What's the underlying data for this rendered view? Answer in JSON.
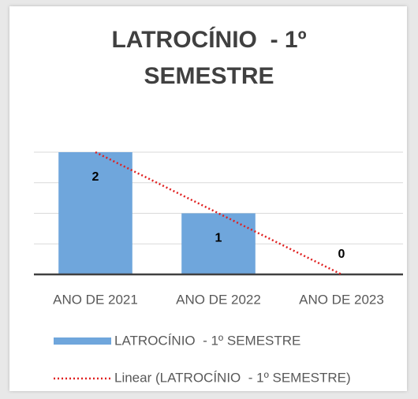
{
  "chart_data": {
    "type": "bar",
    "title": "LATROCÍNIO  - 1º SEMESTRE",
    "categories": [
      "ANO DE 2021",
      "ANO DE 2022",
      "ANO DE 2023"
    ],
    "series": [
      {
        "name": "LATROCÍNIO  - 1º SEMESTRE",
        "color": "#6fa6dc",
        "values": [
          2,
          1,
          0
        ]
      }
    ],
    "trendline": {
      "name": "Linear (LATROCÍNIO  - 1º SEMESTRE)",
      "color": "#e02020"
    },
    "ylim": [
      0,
      2
    ],
    "yticks": [
      0,
      0.5,
      1,
      1.5,
      2
    ],
    "grid": true,
    "legend": "bottom"
  }
}
